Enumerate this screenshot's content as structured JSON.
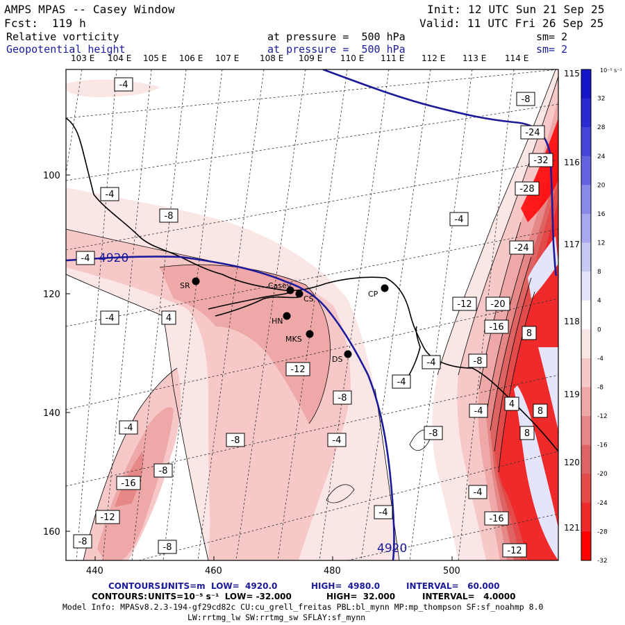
{
  "header": {
    "title": "AMPS MPAS -- Casey Window",
    "forecast": "Fcst:  119 h",
    "init": "Init: 12 UTC Sun 21 Sep 25",
    "valid": "Valid: 11 UTC Fri 26 Sep 25",
    "field1_name": "Relative vorticity",
    "field1_level": "at pressure =  500 hPa",
    "field1_sm": "sm= 2",
    "field2_name": "Geopotential height",
    "field2_level": "at pressure =  500 hPa",
    "field2_sm": "sm= 2"
  },
  "lon_labels": [
    "103 E",
    "104 E",
    "105 E",
    "106 E",
    "107 E",
    "108 E",
    "109 E",
    "110 E",
    "111 E",
    "112 E",
    "113 E",
    "114 E"
  ],
  "right_lon_labels": [
    "115 E",
    "116 E",
    "117 E",
    "118 E",
    "119 E",
    "120 E",
    "121 E"
  ],
  "x_ticks": [
    "440",
    "460",
    "480",
    "500"
  ],
  "y_ticks": [
    "100",
    "120",
    "140",
    "160"
  ],
  "stations": [
    {
      "name": "SR"
    },
    {
      "name": "Casey"
    },
    {
      "name": "CS"
    },
    {
      "name": "HN"
    },
    {
      "name": "MKS"
    },
    {
      "name": "DS"
    },
    {
      "name": "CP"
    }
  ],
  "height_labels": [
    "4920",
    "4920"
  ],
  "vort_labels": [
    "-4",
    "-4",
    "-4",
    "-8",
    "-4",
    "-4",
    "4",
    "-12",
    "-8",
    "-4",
    "-8",
    "-4",
    "-8",
    "-16",
    "-12",
    "-8",
    "-8",
    "-4",
    "-8",
    "-24",
    "-32",
    "-28",
    "-4",
    "-24",
    "-12",
    "-20",
    "-16",
    "8",
    "-8",
    "-4",
    "-4",
    "4",
    "8",
    "8",
    "-4",
    "-16",
    "-12",
    "-4"
  ],
  "colorbar": {
    "units": "10⁻⁵ s⁻¹",
    "labels": [
      "32",
      "28",
      "24",
      "20",
      "16",
      "12",
      "8",
      "4",
      "0",
      "-4",
      "-8",
      "-12",
      "-16",
      "-20",
      "-24",
      "-28",
      "-32"
    ],
    "colors": [
      "#1414c8",
      "#2a2ad0",
      "#4545da",
      "#6464e0",
      "#8a8ae8",
      "#a8a8ee",
      "#c8c8f4",
      "#e4e4fa",
      "#ffffff",
      "#fbe6e6",
      "#f6c8c8",
      "#eea8a8",
      "#e68888",
      "#de6464",
      "#e34a4a",
      "#ee2a2a",
      "#ff0000"
    ]
  },
  "footer": {
    "line1_contours": "CONTOURS:",
    "line1_units": "UNITS=m  LOW=  4920.0",
    "line1_high": "HIGH=  4980.0",
    "line1_interval": "INTERVAL=   60.000",
    "line2_contours": "CONTOURS:",
    "line2_units": "UNITS=10⁻⁵ s⁻¹  LOW= -32.000",
    "line2_high": "HIGH=  32.000",
    "line2_interval": "INTERVAL=   4.0000",
    "model_info": "Model Info: MPASv8.2.3-194-gf29cd82c CU:cu_grell_freitas PBL:bl_mynn MP:mp_thompson SF:sf_noahmp 8.0",
    "model_info2": "LW:rrtmg_lw SW:rrtmg_sw SFLAY:sf_mynn"
  },
  "colors": {
    "navy": "#1a1a9a",
    "plus_red": "#ff0000"
  }
}
